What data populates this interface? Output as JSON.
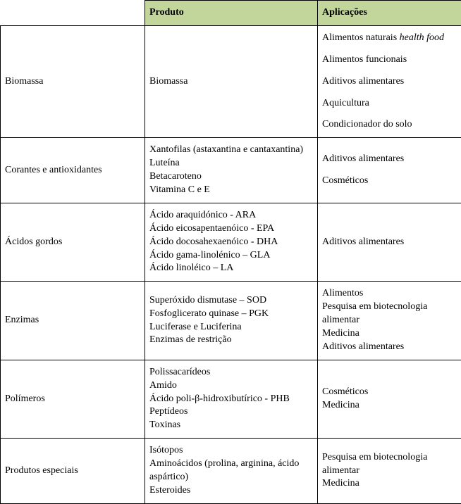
{
  "header": {
    "col1": "",
    "col2": "Produto",
    "col3": "Aplicações"
  },
  "rows": [
    {
      "category": "Biomassa",
      "product": "Biomassa",
      "applications_spaced": [
        "Alimentos naturais <em>health food</em>",
        "Alimentos funcionais",
        "Aditivos alimentares",
        "Aquicultura",
        "Condicionador do solo"
      ]
    },
    {
      "category": "Corantes e antioxidantes",
      "product_lines": [
        "Xantofilas (astaxantina e cantaxantina)",
        "Luteína",
        "Betacaroteno",
        "Vitamina C e E"
      ],
      "applications_spaced": [
        "Aditivos alimentares",
        "Cosméticos"
      ]
    },
    {
      "category": "Ácidos gordos",
      "product_lines": [
        "Ácido araquidónico - ARA",
        "Ácido eicosapentaenóico - EPA",
        "Ácido docosahexaenóico - DHA",
        "Ácido gama-linolénico – GLA",
        "Ácido linoléico – LA"
      ],
      "applications": [
        "Aditivos alimentares"
      ]
    },
    {
      "category": "Enzimas",
      "product_lines": [
        "Superóxido dismutase – SOD",
        "Fosfoglicerato quinase – PGK",
        "Luciferase e Luciferina",
        "Enzimas de restrição"
      ],
      "applications": [
        "Alimentos",
        "Pesquisa em biotecnologia alimentar",
        "Medicina",
        "Aditivos alimentares"
      ]
    },
    {
      "category": "Polímeros",
      "product_lines": [
        "Polissacarídeos",
        "Amido",
        "Ácido poli-β-hidroxibutírico - PHB",
        "Peptídeos",
        "Toxinas"
      ],
      "applications": [
        "Cosméticos",
        "Medicina"
      ]
    },
    {
      "category": "Produtos especiais",
      "product_lines": [
        "Isótopos",
        "Aminoácidos (prolina, arginina, ácido aspártico)",
        "Esteroides"
      ],
      "applications": [
        "Pesquisa em biotecnologia alimentar",
        "Medicina"
      ]
    }
  ],
  "style": {
    "header_bg": "#c2d59b",
    "border_color": "#000000",
    "font_family": "Times New Roman",
    "font_size_pt": 11
  }
}
